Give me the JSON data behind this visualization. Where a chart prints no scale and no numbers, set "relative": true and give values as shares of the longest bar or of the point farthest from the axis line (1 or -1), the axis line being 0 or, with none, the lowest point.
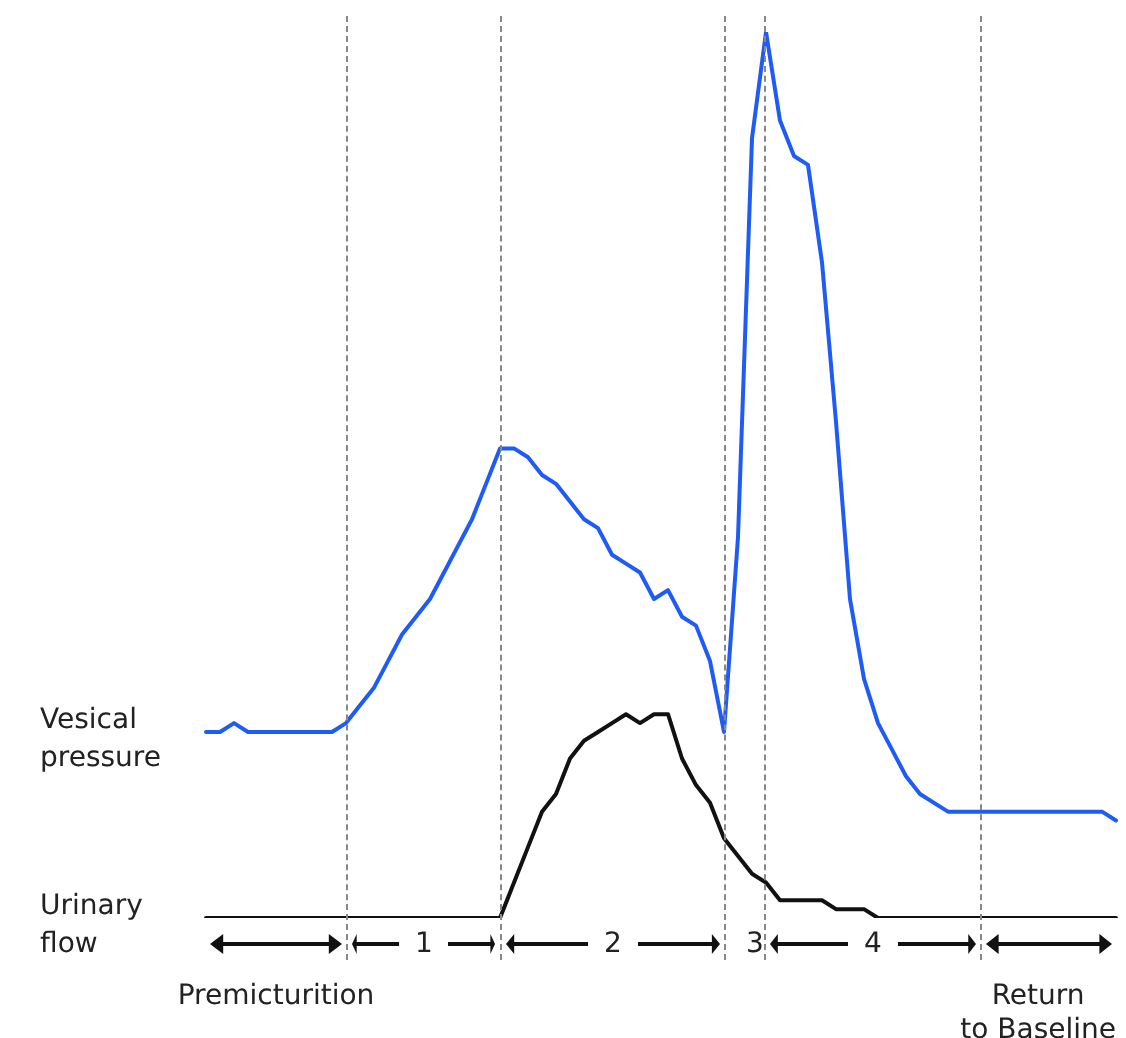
{
  "chart_data": {
    "type": "line",
    "relative": true,
    "grid": "x",
    "categories": [
      null,
      null,
      null,
      null,
      null,
      null,
      null,
      null,
      null,
      null,
      null,
      null,
      null,
      null,
      null,
      null,
      null,
      null,
      null,
      null,
      null,
      null,
      null,
      null,
      null,
      null,
      null,
      null,
      null,
      null,
      null,
      null,
      null,
      null,
      null,
      null,
      null,
      null,
      null,
      null,
      null,
      null,
      null,
      null,
      null,
      null,
      null,
      null,
      null,
      null,
      null,
      null,
      null,
      null,
      null,
      null,
      null,
      null,
      null,
      null,
      null,
      null,
      null,
      null,
      null,
      null
    ],
    "series": [
      {
        "name": "Vesical pressure",
        "color": "#1f5cf5",
        "values": [
          0.21,
          0.21,
          0.22,
          0.21,
          0.21,
          0.21,
          0.21,
          0.21,
          0.21,
          0.21,
          0.22,
          0.24,
          0.26,
          0.29,
          0.32,
          0.34,
          0.36,
          0.39,
          0.42,
          0.45,
          0.49,
          0.53,
          0.53,
          0.52,
          0.5,
          0.49,
          0.47,
          0.45,
          0.44,
          0.41,
          0.4,
          0.39,
          0.36,
          0.37,
          0.34,
          0.33,
          0.29,
          0.21,
          0.43,
          0.88,
          1,
          0.9,
          0.86,
          0.85,
          0.74,
          0.56,
          0.36,
          0.27,
          0.22,
          0.19,
          0.16,
          0.14,
          0.13,
          0.12,
          0.12,
          0.12,
          0.12,
          0.12,
          0.12,
          0.12,
          0.12,
          0.12,
          0.12,
          0.12,
          0.12,
          0.11
        ]
      },
      {
        "name": "Urinary flow",
        "color": "#111111",
        "values": [
          0,
          0,
          0,
          0,
          0,
          0,
          0,
          0,
          0,
          0,
          0,
          0,
          0,
          0,
          0,
          0,
          0,
          0,
          0,
          0,
          0,
          0,
          0.04,
          0.08,
          0.12,
          0.14,
          0.18,
          0.2,
          0.21,
          0.22,
          0.23,
          0.22,
          0.23,
          0.23,
          0.18,
          0.15,
          0.13,
          0.09,
          0.07,
          0.05,
          0.04,
          0.02,
          0.02,
          0.02,
          0.02,
          0.01,
          0.01,
          0.01,
          0,
          0,
          0,
          0,
          0,
          0,
          0,
          0,
          0,
          0,
          0,
          0,
          0,
          0,
          0,
          0,
          0,
          0
        ]
      }
    ],
    "annotations": [
      "Premicturition",
      "1",
      "2",
      "3",
      "4",
      "Return to Baseline"
    ]
  }
}
